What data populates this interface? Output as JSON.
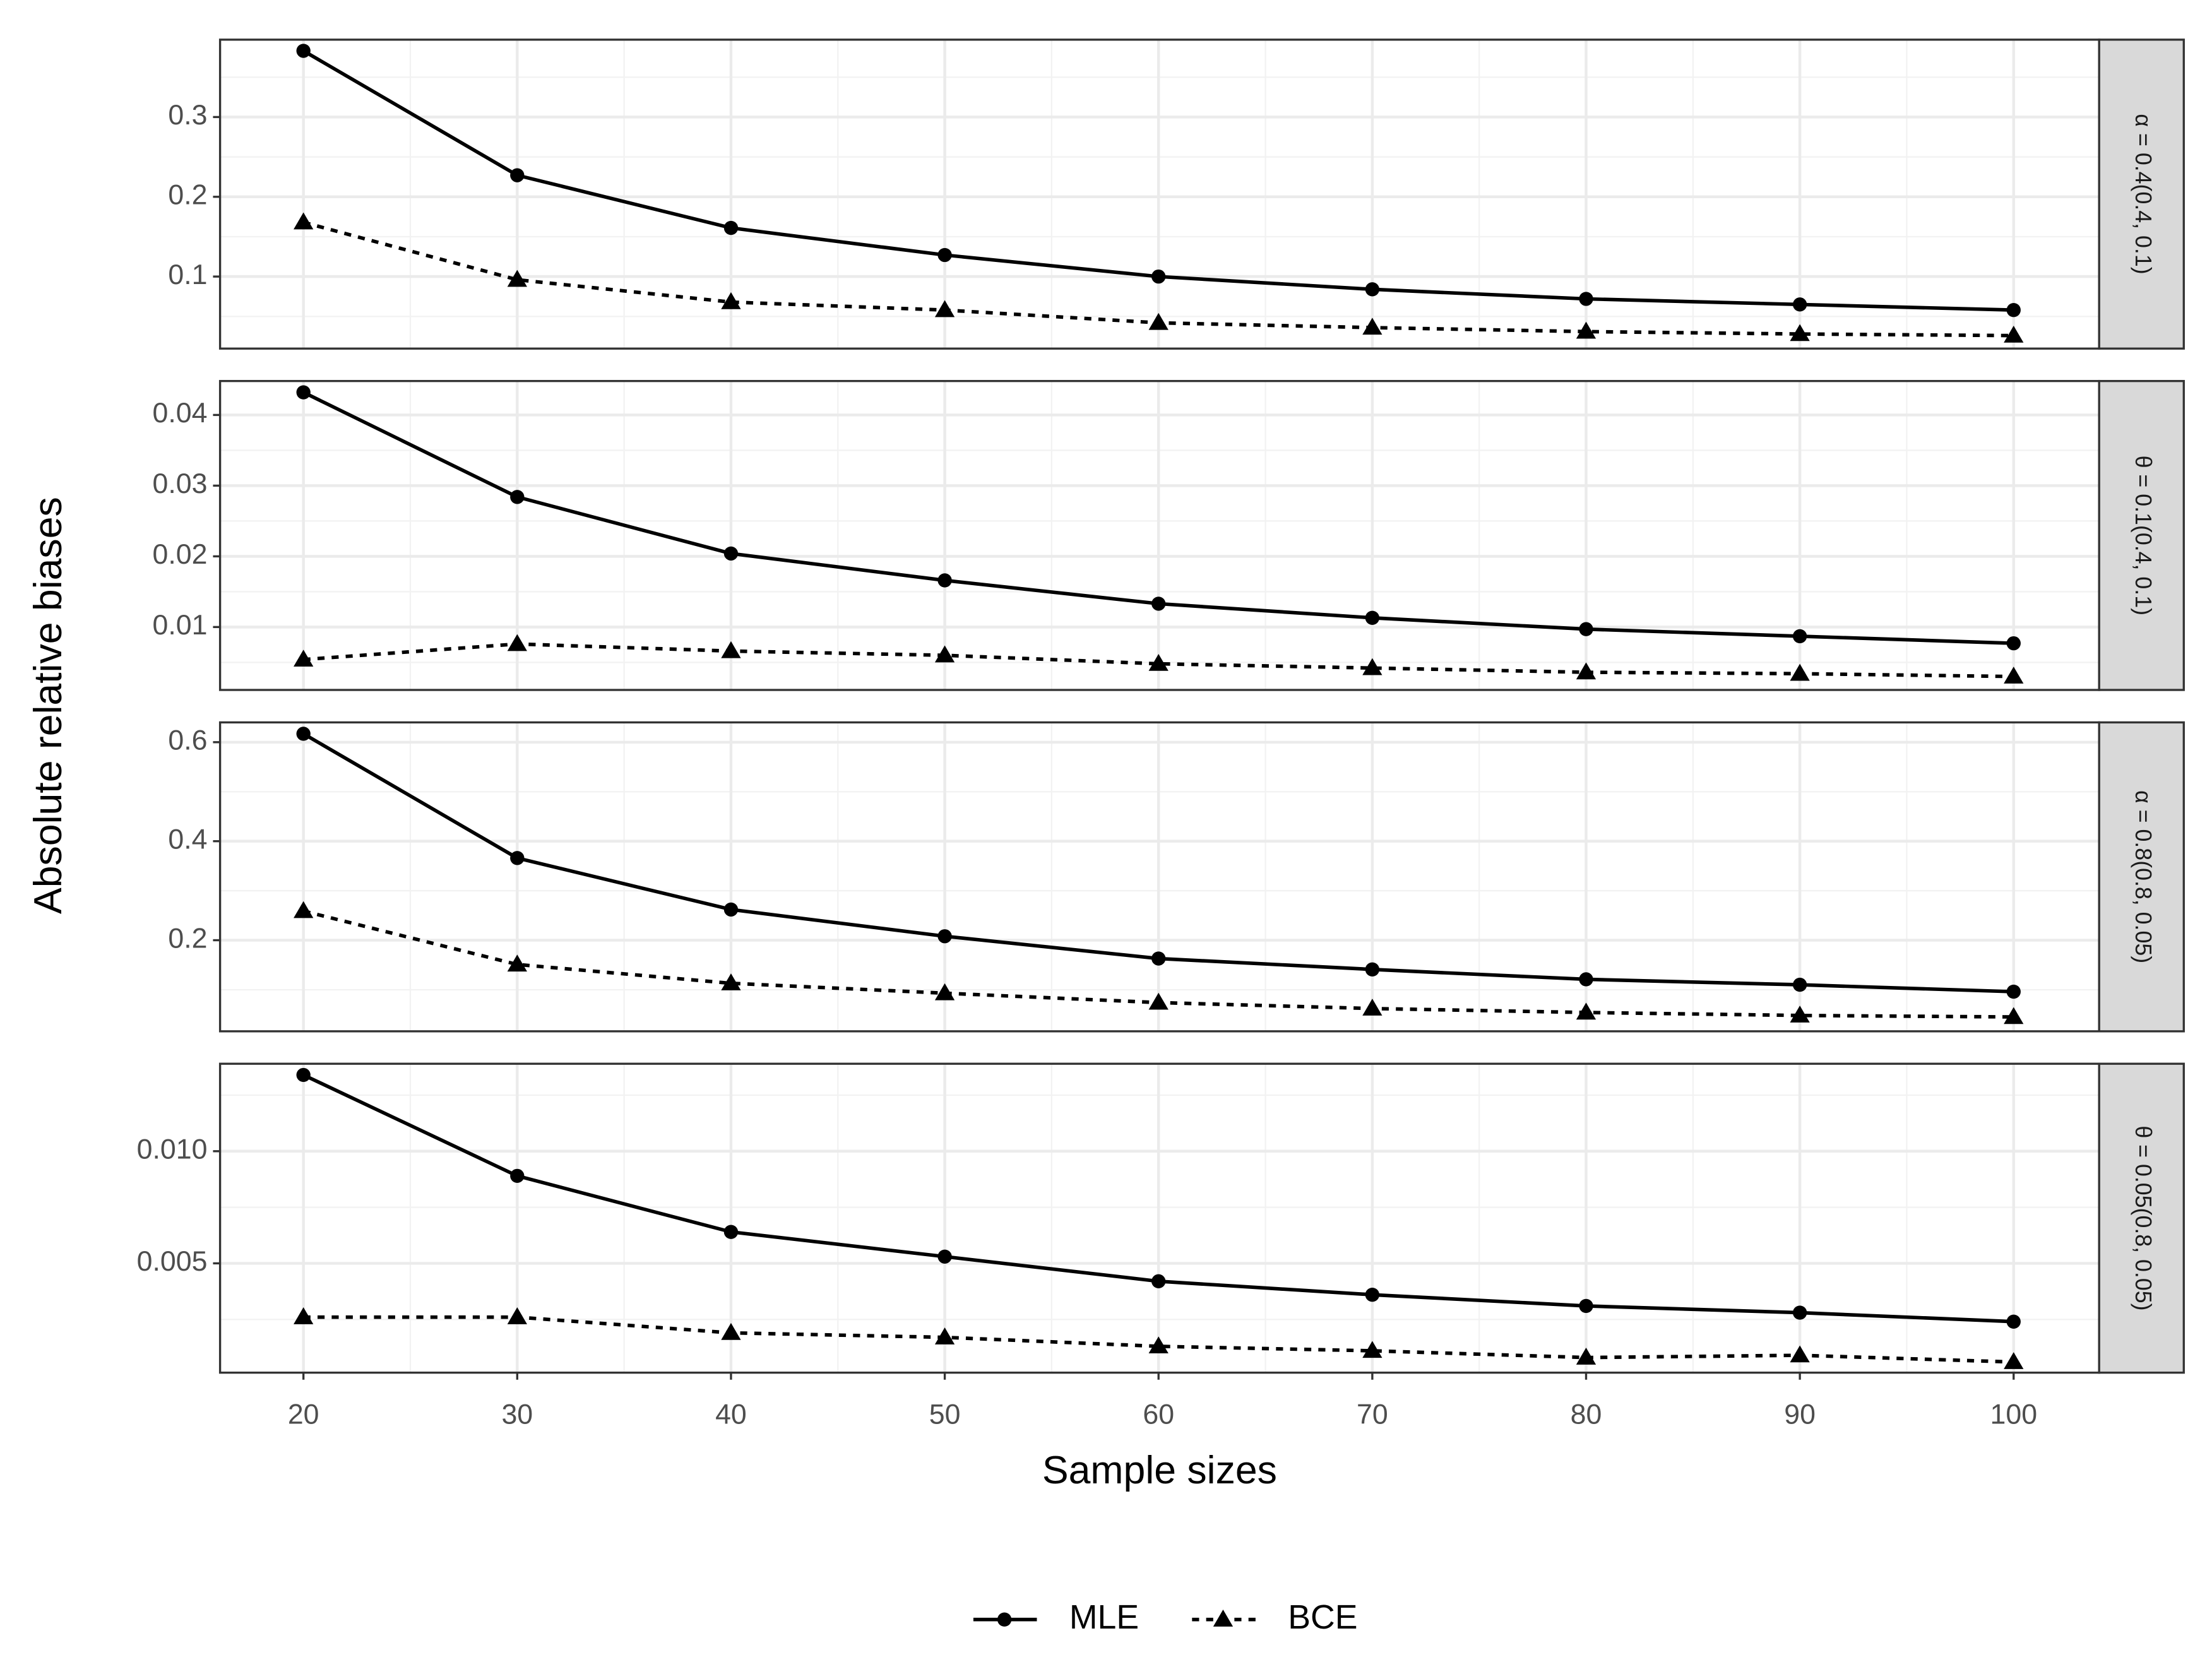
{
  "chart_data": {
    "type": "line",
    "x_label": "Sample sizes",
    "y_label": "Absolute relative biases",
    "x": [
      20,
      30,
      40,
      50,
      60,
      70,
      80,
      90,
      100
    ],
    "xlim": [
      16.1,
      104
    ],
    "xticks": [
      20,
      30,
      40,
      50,
      60,
      70,
      80,
      90,
      100
    ],
    "grid": true,
    "legend_position": "bottom",
    "series": [
      {
        "name": "MLE",
        "color": "#000000",
        "linestyle": "solid",
        "marker": "circle"
      },
      {
        "name": "BCE",
        "color": "#000000",
        "linestyle": "dashed",
        "marker": "triangle"
      }
    ],
    "panels": [
      {
        "strip": "α = 0.4(0.4, 0.1)",
        "ylim": [
          0.0097,
          0.397
        ],
        "yticks": [
          0.1,
          0.2,
          0.3
        ],
        "values": [
          [
            0.383,
            0.227,
            0.161,
            0.127,
            0.1,
            0.084,
            0.072,
            0.065,
            0.058
          ],
          [
            0.168,
            0.096,
            0.068,
            0.058,
            0.042,
            0.036,
            0.031,
            0.028,
            0.026
          ]
        ]
      },
      {
        "strip": "θ = 0.1(0.4, 0.1)",
        "ylim": [
          0.0011,
          0.0448
        ],
        "yticks": [
          0.01,
          0.02,
          0.03,
          0.04
        ],
        "values": [
          [
            0.0432,
            0.0284,
            0.0204,
            0.0166,
            0.0133,
            0.0113,
            0.0097,
            0.0087,
            0.0077
          ],
          [
            0.0054,
            0.0076,
            0.0066,
            0.006,
            0.0048,
            0.0042,
            0.0036,
            0.0034,
            0.003
          ]
        ]
      },
      {
        "strip": "α = 0.8(0.8, 0.05)",
        "ylim": [
          0.016,
          0.64
        ],
        "yticks": [
          0.2,
          0.4,
          0.6
        ],
        "values": [
          [
            0.617,
            0.366,
            0.262,
            0.208,
            0.163,
            0.141,
            0.121,
            0.11,
            0.096
          ],
          [
            0.259,
            0.151,
            0.113,
            0.093,
            0.074,
            0.062,
            0.054,
            0.048,
            0.045
          ]
        ]
      },
      {
        "strip": "θ = 0.05(0.8, 0.05)",
        "ylim": [
          0.000125,
          0.0139
        ],
        "yticks": [
          {
            "value": 0.005,
            "label": "0.005"
          },
          {
            "value": 0.01,
            "label": "0.010"
          }
        ],
        "values": [
          [
            0.0134,
            0.0089,
            0.0064,
            0.0053,
            0.0042,
            0.0036,
            0.0031,
            0.0028,
            0.0024
          ],
          [
            0.0026,
            0.0026,
            0.0019,
            0.0017,
            0.0013,
            0.0011,
            0.0008,
            0.0009,
            0.0006
          ]
        ]
      }
    ]
  }
}
